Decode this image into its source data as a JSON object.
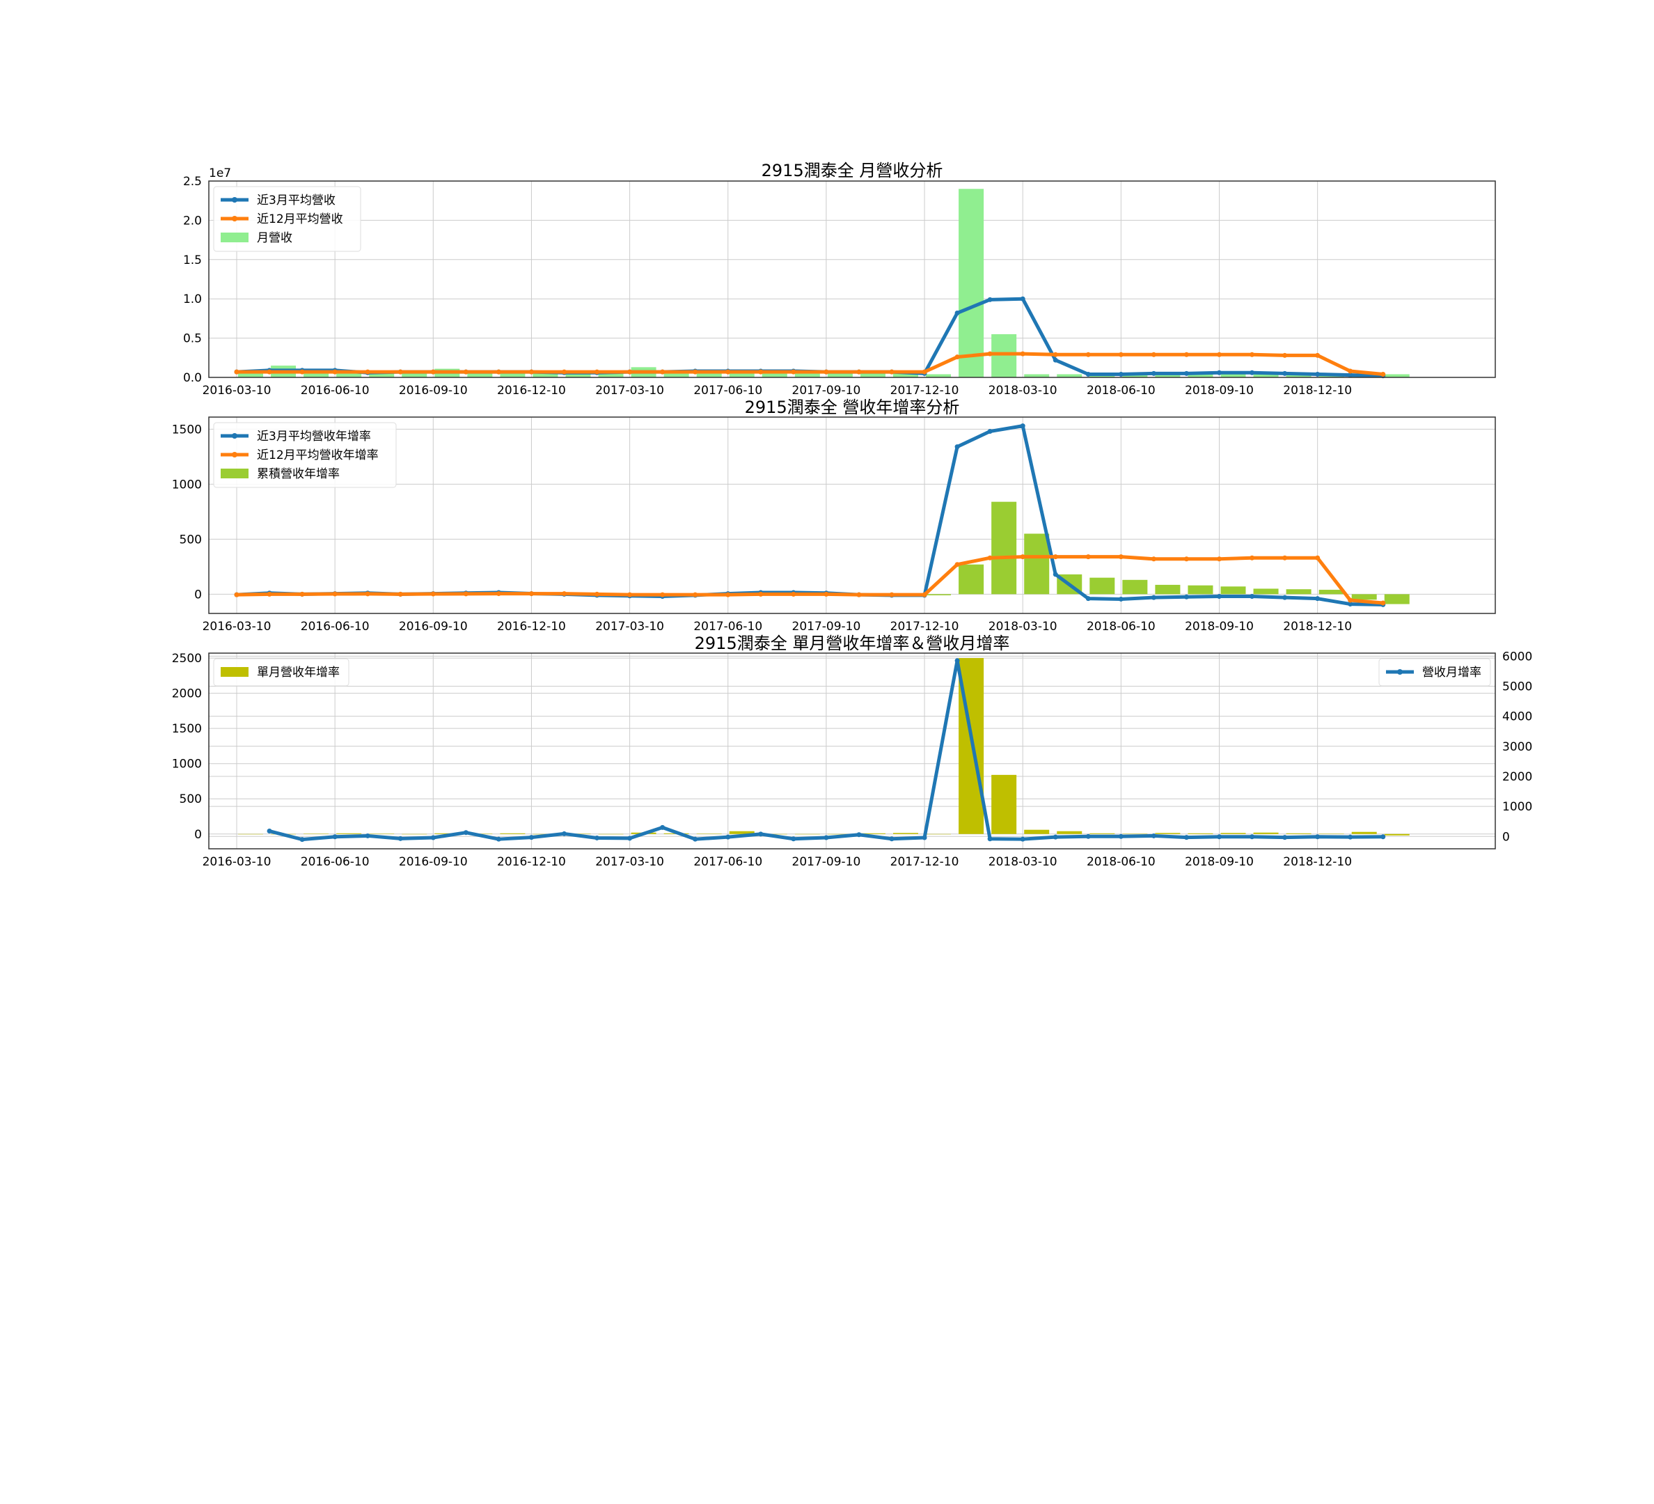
{
  "colors": {
    "blue": "#1f77b4",
    "orange": "#ff7f0e",
    "lightgreen": "#90ee90",
    "yellowgreen": "#9acd32",
    "olive": "#bfbf00",
    "grid": "#cccccc",
    "axis": "#333333"
  },
  "chart_data": [
    {
      "type": "bar+line",
      "title": "2915潤泰全 月營收分析",
      "exponent_label": "1e7",
      "x_tick_labels": [
        "2016-03-10",
        "2016-06-10",
        "2016-09-10",
        "2016-12-10",
        "2017-03-10",
        "2017-06-10",
        "2017-09-10",
        "2017-12-10",
        "2018-03-10",
        "2018-06-10",
        "2018-09-10",
        "2018-12-10"
      ],
      "x_tick_index": [
        0,
        3,
        6,
        9,
        12,
        15,
        18,
        21,
        24,
        27,
        30,
        33
      ],
      "ylim": [
        0,
        2.5
      ],
      "y_ticks": [
        0,
        0.5,
        1.0,
        1.5,
        2.0,
        2.5
      ],
      "y_tick_labels": [
        "0.0",
        "0.5",
        "1.0",
        "1.5",
        "2.0",
        "2.5"
      ],
      "grid": true,
      "legend_position": "top-left",
      "series": [
        {
          "name": "近3月平均營收",
          "kind": "line",
          "color": "#1f77b4",
          "values": [
            0.07,
            0.09,
            0.09,
            0.09,
            0.06,
            0.07,
            0.07,
            0.07,
            0.07,
            0.07,
            0.06,
            0.06,
            0.07,
            0.07,
            0.08,
            0.08,
            0.08,
            0.08,
            0.07,
            0.07,
            0.07,
            0.05,
            0.82,
            0.99,
            1.0,
            0.22,
            0.04,
            0.04,
            0.05,
            0.05,
            0.06,
            0.06,
            0.05,
            0.04,
            0.03,
            0.02
          ]
        },
        {
          "name": "近12月平均營收",
          "kind": "line",
          "color": "#ff7f0e",
          "values": [
            0.07,
            0.07,
            0.07,
            0.07,
            0.07,
            0.07,
            0.07,
            0.07,
            0.07,
            0.07,
            0.07,
            0.07,
            0.07,
            0.07,
            0.07,
            0.07,
            0.07,
            0.07,
            0.07,
            0.07,
            0.07,
            0.07,
            0.26,
            0.3,
            0.3,
            0.29,
            0.29,
            0.29,
            0.29,
            0.29,
            0.29,
            0.29,
            0.28,
            0.28,
            0.08,
            0.04
          ]
        },
        {
          "name": "月營收",
          "kind": "bar",
          "color": "#90ee90",
          "values": [
            0.05,
            0.15,
            0.06,
            0.07,
            0.05,
            0.06,
            0.11,
            0.07,
            0.06,
            0.06,
            0.07,
            0.05,
            0.13,
            0.06,
            0.06,
            0.1,
            0.06,
            0.06,
            0.06,
            0.06,
            0.06,
            0.04,
            2.4,
            0.55,
            0.04,
            0.04,
            0.03,
            0.04,
            0.05,
            0.05,
            0.05,
            0.05,
            0.05,
            0.04,
            0.03,
            0.04
          ]
        }
      ]
    },
    {
      "type": "bar+line",
      "title": "2915潤泰全 營收年增率分析",
      "x_tick_labels": [
        "2016-03-10",
        "2016-06-10",
        "2016-09-10",
        "2016-12-10",
        "2017-03-10",
        "2017-06-10",
        "2017-09-10",
        "2017-12-10",
        "2018-03-10",
        "2018-06-10",
        "2018-09-10",
        "2018-12-10"
      ],
      "x_tick_index": [
        0,
        3,
        6,
        9,
        12,
        15,
        18,
        21,
        24,
        27,
        30,
        33
      ],
      "ylim": [
        -175,
        1610
      ],
      "y_ticks": [
        0,
        500,
        1000,
        1500
      ],
      "y_tick_labels": [
        "0",
        "500",
        "1000",
        "1500"
      ],
      "grid": true,
      "legend_position": "top-left",
      "series": [
        {
          "name": "近3月平均營收年增率",
          "kind": "line",
          "color": "#1f77b4",
          "values": [
            -5,
            10,
            0,
            5,
            10,
            0,
            5,
            10,
            15,
            5,
            0,
            -10,
            -15,
            -20,
            -10,
            5,
            15,
            15,
            10,
            -5,
            -10,
            -10,
            1340,
            1480,
            1530,
            180,
            -40,
            -45,
            -30,
            -25,
            -20,
            -20,
            -30,
            -40,
            -90,
            -95
          ]
        },
        {
          "name": "近12月平均營收年增率",
          "kind": "line",
          "color": "#ff7f0e",
          "values": [
            -5,
            0,
            0,
            2,
            3,
            0,
            2,
            3,
            5,
            5,
            5,
            0,
            -5,
            -5,
            -5,
            -5,
            0,
            0,
            0,
            -5,
            -5,
            -5,
            270,
            330,
            340,
            340,
            340,
            340,
            320,
            320,
            320,
            330,
            330,
            330,
            -55,
            -80
          ]
        },
        {
          "name": "累積營收年增率",
          "kind": "bar",
          "color": "#9acd32",
          "values": [
            0,
            5,
            -5,
            0,
            5,
            0,
            0,
            5,
            5,
            0,
            0,
            0,
            -5,
            -10,
            -10,
            -5,
            5,
            5,
            5,
            -5,
            -10,
            -10,
            270,
            840,
            550,
            180,
            150,
            130,
            85,
            80,
            70,
            50,
            45,
            40,
            -50,
            -90
          ]
        }
      ]
    },
    {
      "type": "bar+line",
      "title": "2915潤泰全 單月營收年增率＆營收月增率",
      "x_tick_labels": [
        "2016-03-10",
        "2016-06-10",
        "2016-09-10",
        "2016-12-10",
        "2017-03-10",
        "2017-06-10",
        "2017-09-10",
        "2017-12-10",
        "2018-03-10",
        "2018-06-10",
        "2018-09-10",
        "2018-12-10"
      ],
      "x_tick_index": [
        0,
        3,
        6,
        9,
        12,
        15,
        18,
        21,
        24,
        27,
        30,
        33
      ],
      "ylim_left": [
        -210,
        2570
      ],
      "y_ticks_left": [
        0,
        500,
        1000,
        1500,
        2000,
        2500
      ],
      "y_tick_labels_left": [
        "0",
        "500",
        "1000",
        "1500",
        "2000",
        "2500"
      ],
      "ylim_right": [
        -410,
        6100
      ],
      "y_ticks_right": [
        0,
        1000,
        2000,
        3000,
        4000,
        5000,
        6000
      ],
      "y_tick_labels_right": [
        "0",
        "1000",
        "2000",
        "3000",
        "4000",
        "5000",
        "6000"
      ],
      "grid": true,
      "legend_left_position": "top-left",
      "legend_right_position": "top-right",
      "series": [
        {
          "name": "單月營收年增率",
          "kind": "bar",
          "axis": "left",
          "color": "#bfbf00",
          "values": [
            0,
            0,
            5,
            10,
            5,
            0,
            10,
            5,
            10,
            0,
            5,
            0,
            20,
            10,
            5,
            40,
            0,
            0,
            0,
            10,
            15,
            0,
            2500,
            840,
            60,
            40,
            10,
            5,
            15,
            10,
            15,
            20,
            10,
            5,
            30,
            -20
          ]
        },
        {
          "name": "營收月增率",
          "kind": "line",
          "axis": "right",
          "color": "#1f77b4",
          "values": [
            null,
            180,
            -100,
            -10,
            20,
            -70,
            -40,
            130,
            -90,
            -30,
            90,
            -50,
            -60,
            300,
            -90,
            -20,
            80,
            -80,
            -40,
            60,
            -80,
            -40,
            5850,
            -80,
            -90,
            -20,
            0,
            0,
            20,
            -30,
            -10,
            -10,
            -30,
            -10,
            -20,
            -10
          ]
        }
      ]
    }
  ]
}
